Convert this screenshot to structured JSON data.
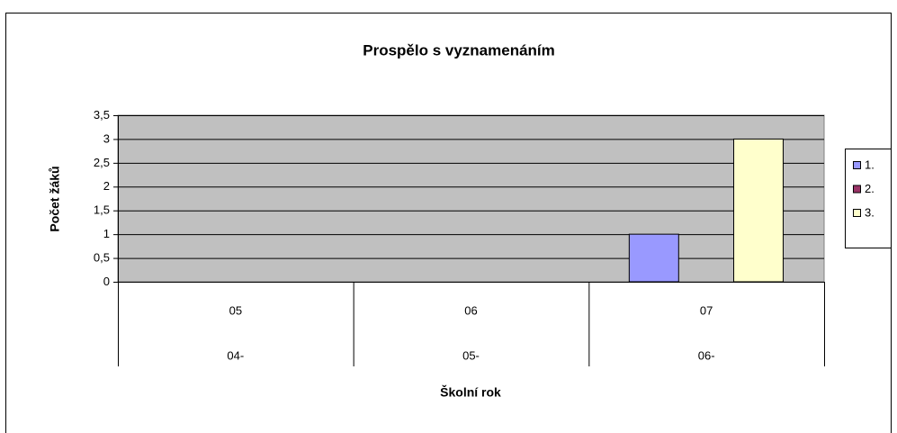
{
  "chart_data": {
    "type": "bar",
    "title": "Prospělo s vyznamenáním",
    "x_label": "Školní rok",
    "y_label": "Počet žáků",
    "categories": [
      "05",
      "06",
      "07"
    ],
    "category_sublabels": [
      "04-",
      "05-",
      "06-"
    ],
    "series": [
      {
        "name": "1.",
        "color": "#9999ff",
        "values": [
          0,
          0,
          1
        ]
      },
      {
        "name": "2.",
        "color": "#993366",
        "values": [
          0,
          0,
          0
        ]
      },
      {
        "name": "3.",
        "color": "#ffffcc",
        "values": [
          0,
          0,
          3
        ]
      }
    ],
    "ylim": [
      0,
      3.5
    ],
    "yticks": [
      0,
      {
        "value": 0.5,
        "label": "0,5"
      },
      1,
      {
        "value": 1.5,
        "label": "1,5"
      },
      2,
      {
        "value": 2.5,
        "label": "2,5"
      },
      3,
      {
        "value": 3.5,
        "label": "3,5"
      }
    ],
    "grid": true,
    "legend": "right",
    "plot_background": "#c0c0c0"
  }
}
